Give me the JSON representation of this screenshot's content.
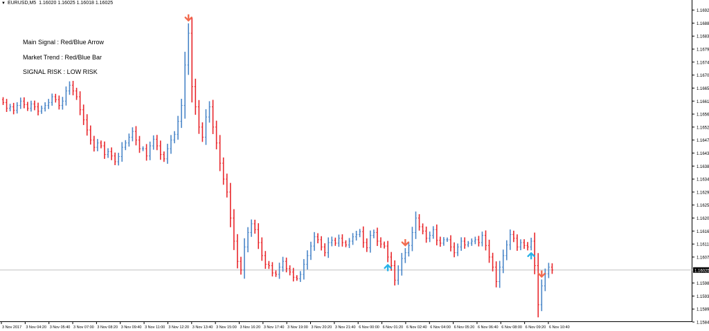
{
  "header": {
    "symbol": "EURUSD,M5",
    "ohlc": "1.16020 1.16025 1.16018 1.16025"
  },
  "annotations": [
    "Main Signal    : Red/Blue Arrow",
    "Market Trend : Red/Blue Bar",
    "SIGNAL RISK : LOW RISK"
  ],
  "colors": {
    "bull_bar": "#4a86c8",
    "bear_bar": "#e8262b",
    "sell_arrow": "#f26b4f",
    "buy_arrow": "#29b3e8",
    "current_price_bg": "#000000",
    "price_line": "#c0c0c0"
  },
  "chart_data": {
    "type": "ohlc-bars",
    "symbol": "EURUSD",
    "timeframe": "M5",
    "ylim": [
      1.15845,
      1.1696
    ],
    "y_ticks": [
      "1.16925",
      "1.16880",
      "1.16835",
      "1.16790",
      "1.16745",
      "1.16700",
      "1.16655",
      "1.16610",
      "1.16565",
      "1.16520",
      "1.16475",
      "1.16430",
      "1.16385",
      "1.16340",
      "1.16295",
      "1.16250",
      "1.16205",
      "1.16160",
      "1.16115",
      "1.16070",
      "1.15980",
      "1.15935",
      "1.15890",
      "1.15845"
    ],
    "current_price": "1.16025",
    "x_ticks": [
      "3 Nov 2017",
      "3 Nov 04:20",
      "3 Nov 05:40",
      "3 Nov 07:00",
      "3 Nov 08:20",
      "3 Nov 09:40",
      "3 Nov 11:00",
      "3 Nov 12:20",
      "3 Nov 13:40",
      "3 Nov 15:00",
      "3 Nov 16:20",
      "3 Nov 17:40",
      "3 Nov 19:00",
      "3 Nov 20:20",
      "3 Nov 21:40",
      "6 Nov 00:00",
      "6 Nov 01:20",
      "6 Nov 02:40",
      "6 Nov 04:00",
      "6 Nov 05:20",
      "6 Nov 06:40",
      "6 Nov 08:00",
      "6 Nov 09:20",
      "6 Nov 10:40"
    ],
    "closes": [
      1.16605,
      1.16585,
      1.1659,
      1.16578,
      1.16595,
      1.1661,
      1.16598,
      1.16585,
      1.166,
      1.1659,
      1.16575,
      1.16585,
      1.16595,
      1.16605,
      1.16625,
      1.16615,
      1.16595,
      1.1661,
      1.16645,
      1.16665,
      1.16645,
      1.16625,
      1.1658,
      1.16545,
      1.1651,
      1.16475,
      1.1645,
      1.16465,
      1.16455,
      1.16425,
      1.16435,
      1.1642,
      1.164,
      1.16418,
      1.1645,
      1.16465,
      1.16485,
      1.16505,
      1.16475,
      1.16445,
      1.16445,
      1.1642,
      1.16455,
      1.16478,
      1.16455,
      1.16425,
      1.1641,
      1.16445,
      1.16475,
      1.16495,
      1.1654,
      1.16595,
      1.16735,
      1.16845,
      1.1666,
      1.1659,
      1.1652,
      1.16485,
      1.16555,
      1.1659,
      1.1652,
      1.16465,
      1.16395,
      1.1634,
      1.16295,
      1.16205,
      1.16125,
      1.16055,
      1.16025,
      1.16105,
      1.16155,
      1.16185,
      1.16165,
      1.1612,
      1.16075,
      1.16045,
      1.1604,
      1.16015,
      1.1601,
      1.16035,
      1.16055,
      1.1603,
      1.16018,
      1.16,
      1.15995,
      1.1601,
      1.16045,
      1.16075,
      1.16108,
      1.1614,
      1.1613,
      1.16105,
      1.16085,
      1.1612,
      1.16128,
      1.16118,
      1.16135,
      1.1612,
      1.16112,
      1.16125,
      1.1614,
      1.16148,
      1.16158,
      1.1612,
      1.16102,
      1.16145,
      1.16155,
      1.16125,
      1.16115,
      1.16108,
      1.1607,
      1.1604,
      1.1599,
      1.16025,
      1.16065,
      1.16085,
      1.1611,
      1.16155,
      1.16205,
      1.16175,
      1.1616,
      1.16135,
      1.16145,
      1.16165,
      1.16128,
      1.16118,
      1.1613,
      1.1613,
      1.16105,
      1.16085,
      1.16105,
      1.16125,
      1.16112,
      1.16118,
      1.16125,
      1.1613,
      1.1612,
      1.16145,
      1.1611,
      1.1607,
      1.16035,
      1.15985,
      1.16035,
      1.16075,
      1.16112,
      1.16148,
      1.16135,
      1.16105,
      1.1612,
      1.1611,
      1.16105,
      1.16125,
      1.1604,
      1.15905,
      1.1597,
      1.16012,
      1.16035,
      1.16025
    ],
    "sell_arrow_bars": [
      53,
      115,
      154
    ],
    "buy_arrow_bars": [
      110,
      151
    ]
  }
}
